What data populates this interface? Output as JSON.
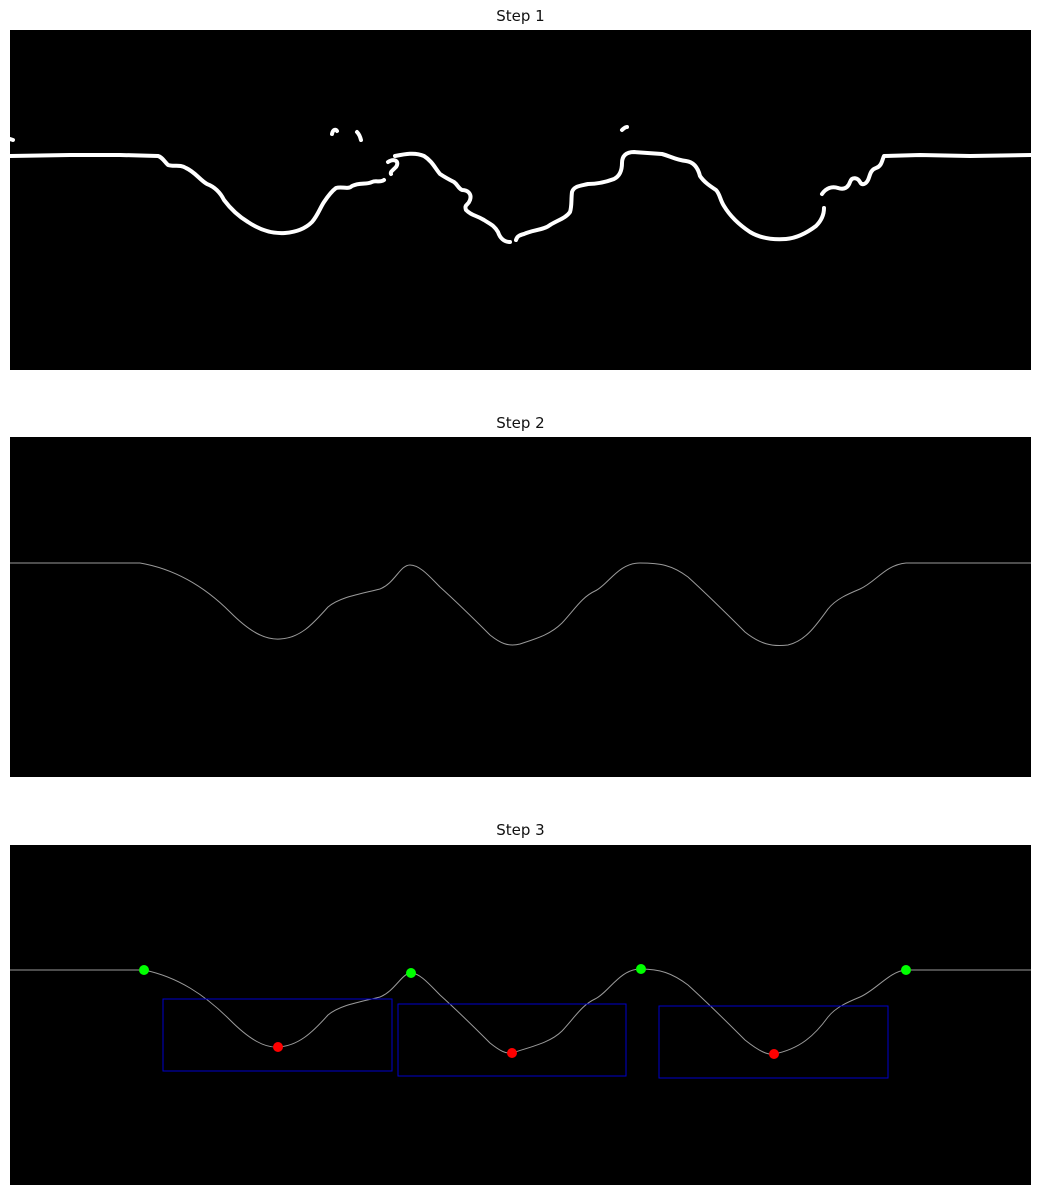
{
  "panels": [
    {
      "title": "Step 1"
    },
    {
      "title": "Step 2"
    },
    {
      "title": "Step 3"
    }
  ],
  "colors": {
    "background": "#000000",
    "mask": "#ffffff",
    "curve": "#9a9a9a",
    "peak_marker": "#00ff00",
    "valley_marker": "#ff0000",
    "region_box": "#0000cc"
  }
}
